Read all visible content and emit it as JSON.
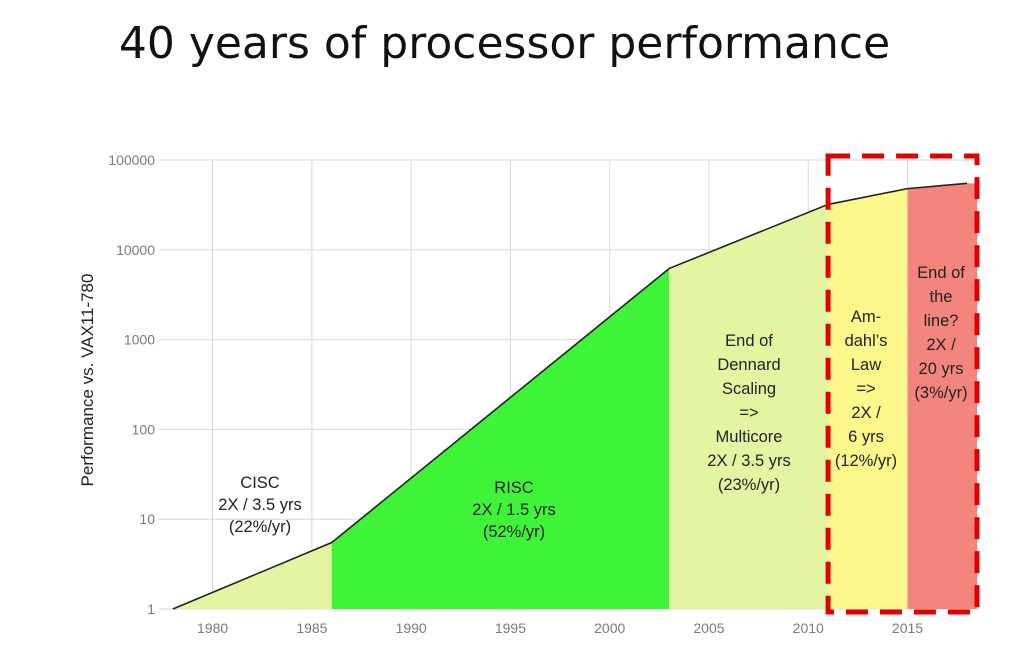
{
  "title": "40 years of processor performance",
  "chart_data": {
    "type": "area",
    "ylabel": "Performance vs. VAX11-780",
    "xlabel": "",
    "yscale": "log",
    "ylim": [
      1,
      100000
    ],
    "xlim": [
      1977.5,
      2018.5
    ],
    "x_ticks": [
      "1980",
      "1985",
      "1990",
      "1995",
      "2000",
      "2005",
      "2010",
      "2015"
    ],
    "y_ticks": [
      "1",
      "10",
      "100",
      "1000",
      "10000",
      "100000"
    ],
    "series": [
      {
        "name": "Performance",
        "points": [
          [
            1978,
            1
          ],
          [
            1986,
            5.5
          ],
          [
            2003,
            6200
          ],
          [
            2011,
            32000
          ],
          [
            2015,
            48000
          ],
          [
            2018,
            55000
          ]
        ]
      }
    ],
    "eras": [
      {
        "name": "CISC",
        "x_start": 1978,
        "x_end": 1986,
        "color": "#e4f5a2",
        "lines": [
          "CISC",
          "2X / 3.5 yrs",
          "(22%/yr)"
        ]
      },
      {
        "name": "RISC",
        "x_start": 1986,
        "x_end": 2003,
        "color": "#3ef338",
        "lines": [
          "RISC",
          "2X / 1.5 yrs",
          "(52%/yr)"
        ]
      },
      {
        "name": "End of Dennard Scaling",
        "x_start": 2003,
        "x_end": 2011,
        "color": "#e4f5a2",
        "lines": [
          "End of",
          "Dennard",
          "Scaling",
          "=>",
          "Multicore",
          "2X / 3.5 yrs",
          "(23%/yr)"
        ]
      },
      {
        "name": "Amdahl's Law",
        "x_start": 2011,
        "x_end": 2015,
        "color": "#fbf78a",
        "lines": [
          "Am-",
          "dahl’s",
          "Law",
          "=>",
          "2X /",
          "6 yrs",
          "(12%/yr)"
        ]
      },
      {
        "name": "End of the line",
        "x_start": 2015,
        "x_end": 2018.5,
        "color": "#f4857e",
        "lines": [
          "End of",
          "the",
          "line?",
          "2X /",
          "20 yrs",
          "(3%/yr)"
        ]
      }
    ],
    "highlight": {
      "style": "dashed-box",
      "color": "#e00000",
      "x_start": 2011,
      "x_end": 2018.5
    },
    "grid": true
  }
}
